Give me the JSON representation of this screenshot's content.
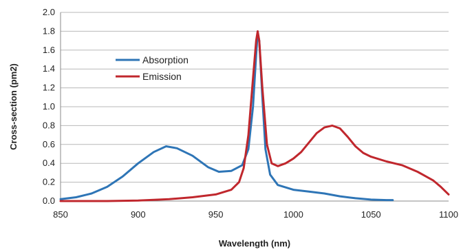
{
  "chart_data": {
    "type": "line",
    "xlabel": "Wavelength (nm)",
    "ylabel": "Cross-section (pm2)",
    "xlim": [
      850,
      1100
    ],
    "ylim": [
      0,
      2.0
    ],
    "x_ticks": [
      "850",
      "900",
      "950",
      "1000",
      "1050",
      "1100"
    ],
    "y_ticks": [
      "0.0",
      "0.2",
      "0.4",
      "0.6",
      "0.8",
      "1.0",
      "1.2",
      "1.4",
      "1.6",
      "1.8",
      "2.0"
    ],
    "grid": "horizontal",
    "legend_position": "top-left",
    "series": [
      {
        "name": "Absorption",
        "color": "#2E75B6",
        "points": [
          [
            850,
            0.02
          ],
          [
            860,
            0.04
          ],
          [
            870,
            0.08
          ],
          [
            880,
            0.15
          ],
          [
            890,
            0.26
          ],
          [
            900,
            0.4
          ],
          [
            910,
            0.52
          ],
          [
            918,
            0.58
          ],
          [
            925,
            0.56
          ],
          [
            935,
            0.48
          ],
          [
            945,
            0.36
          ],
          [
            952,
            0.31
          ],
          [
            960,
            0.32
          ],
          [
            967,
            0.38
          ],
          [
            971,
            0.55
          ],
          [
            974,
            1.0
          ],
          [
            976,
            1.55
          ],
          [
            977,
            1.78
          ],
          [
            978,
            1.7
          ],
          [
            980,
            1.1
          ],
          [
            982,
            0.55
          ],
          [
            985,
            0.28
          ],
          [
            990,
            0.17
          ],
          [
            1000,
            0.12
          ],
          [
            1010,
            0.1
          ],
          [
            1020,
            0.08
          ],
          [
            1030,
            0.05
          ],
          [
            1040,
            0.03
          ],
          [
            1050,
            0.015
          ],
          [
            1060,
            0.01
          ],
          [
            1064,
            0.01
          ]
        ]
      },
      {
        "name": "Emission",
        "color": "#C0272D",
        "points": [
          [
            850,
            0.0
          ],
          [
            880,
            0.0
          ],
          [
            900,
            0.005
          ],
          [
            920,
            0.02
          ],
          [
            935,
            0.04
          ],
          [
            950,
            0.07
          ],
          [
            960,
            0.12
          ],
          [
            965,
            0.2
          ],
          [
            968,
            0.35
          ],
          [
            971,
            0.7
          ],
          [
            974,
            1.3
          ],
          [
            976,
            1.7
          ],
          [
            977,
            1.8
          ],
          [
            978,
            1.7
          ],
          [
            980,
            1.2
          ],
          [
            983,
            0.6
          ],
          [
            986,
            0.4
          ],
          [
            990,
            0.37
          ],
          [
            995,
            0.4
          ],
          [
            1000,
            0.45
          ],
          [
            1005,
            0.52
          ],
          [
            1010,
            0.62
          ],
          [
            1015,
            0.72
          ],
          [
            1020,
            0.78
          ],
          [
            1025,
            0.8
          ],
          [
            1030,
            0.77
          ],
          [
            1035,
            0.68
          ],
          [
            1040,
            0.58
          ],
          [
            1045,
            0.51
          ],
          [
            1050,
            0.47
          ],
          [
            1060,
            0.42
          ],
          [
            1070,
            0.38
          ],
          [
            1080,
            0.31
          ],
          [
            1090,
            0.22
          ],
          [
            1095,
            0.15
          ],
          [
            1100,
            0.07
          ]
        ]
      }
    ]
  }
}
